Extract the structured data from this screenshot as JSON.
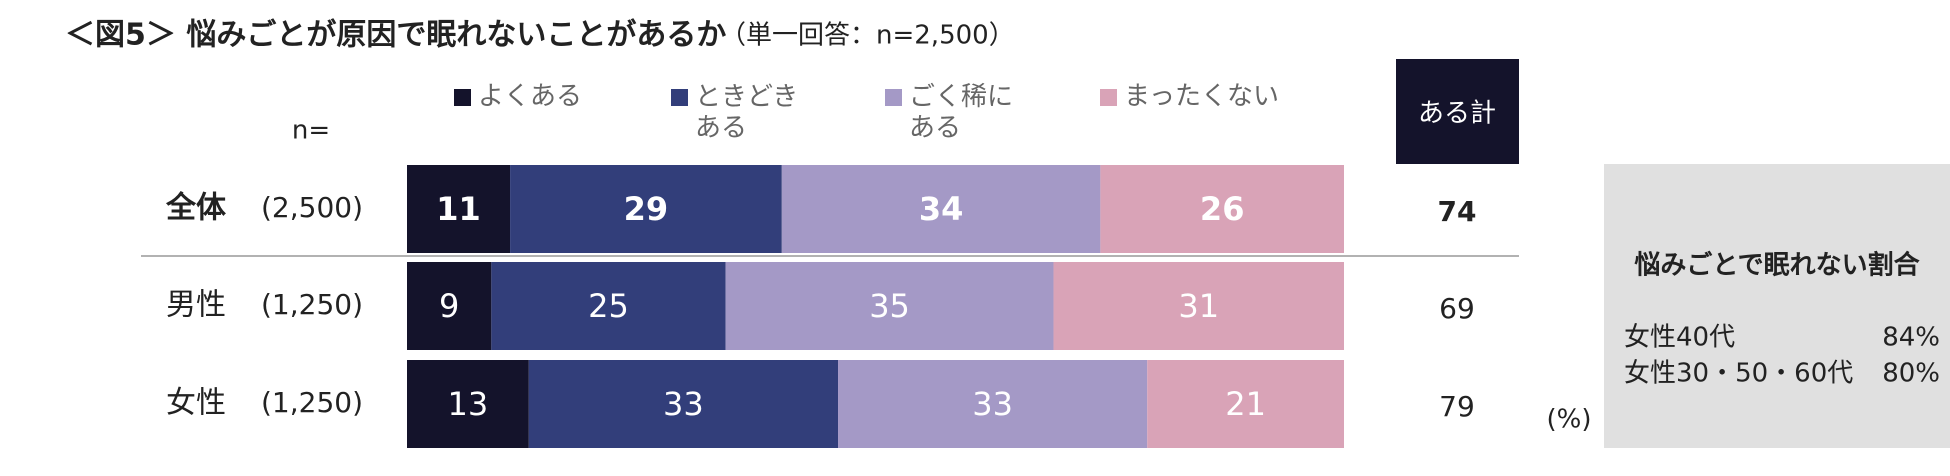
{
  "chart_data": {
    "type": "stacked_barh",
    "title": "＜図5＞ 悩みごとが原因で眠れないことがあるか",
    "subtitle": "（単一回答：n=2,500）",
    "n_header": "n=",
    "unit_label": "(%)",
    "categories": [
      "全体",
      "男性",
      "女性"
    ],
    "n_labels": [
      "(2,500)",
      "(1,250)",
      "(1,250)"
    ],
    "xlim": [
      0,
      100
    ],
    "series": [
      {
        "name": "よくある",
        "color": "#14132b",
        "values": [
          11,
          9,
          13
        ]
      },
      {
        "name": "ときどき\nある",
        "color": "#323e7a",
        "values": [
          29,
          25,
          33
        ]
      },
      {
        "name": "ごく稀に\nある",
        "color": "#a499c6",
        "values": [
          34,
          35,
          33
        ]
      },
      {
        "name": "まったくない",
        "color": "#d9a3b7",
        "values": [
          26,
          31,
          21
        ]
      }
    ],
    "total": {
      "name": "ある計",
      "values": [
        74,
        69,
        79
      ]
    },
    "side_box": {
      "title": "悩みごとで眠れない割合",
      "rows": [
        [
          "女性40代",
          "84%"
        ],
        [
          "女性30・50・60代",
          "80%"
        ]
      ]
    }
  }
}
